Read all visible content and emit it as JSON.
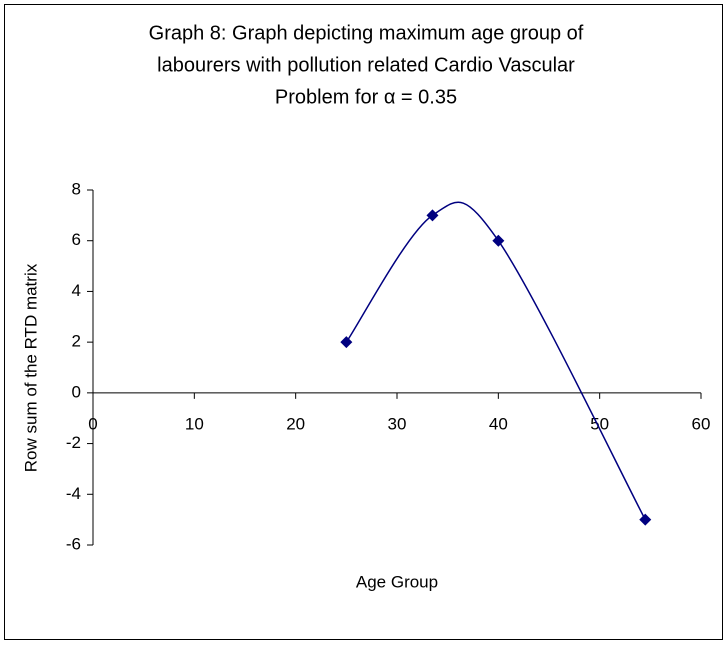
{
  "chart_data": {
    "type": "scatter",
    "title": [
      "Graph 8: Graph depicting maximum age group of",
      "labourers with pollution related Cardio Vascular",
      "Problem for α = 0.35"
    ],
    "x_label": "Age Group",
    "y_label": "Row sum of the RTD matrix",
    "x": [
      25,
      33.5,
      40,
      54.5
    ],
    "values": [
      2,
      7,
      6,
      -5
    ],
    "color": "#000080",
    "xlim": [
      0,
      60
    ],
    "xticks": [
      0,
      10,
      20,
      30,
      40,
      50,
      60
    ],
    "ylim": [
      -6,
      8
    ],
    "yticks": [
      -6,
      -4,
      -2,
      0,
      2,
      4,
      6,
      8
    ],
    "smooth": true
  }
}
